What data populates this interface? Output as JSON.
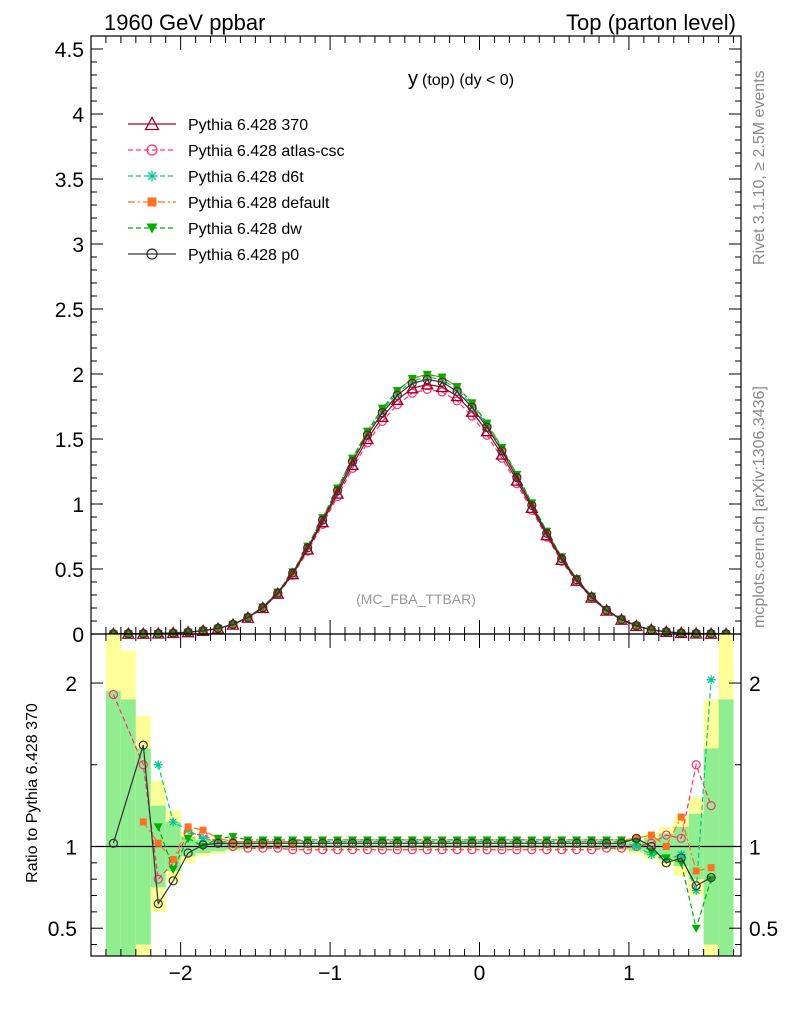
{
  "header": {
    "left": "1960 GeV ppbar",
    "right": "Top (parton level)"
  },
  "side_labels": {
    "rivet": "Rivet 3.1.10, ≥ 2.5M events",
    "mcplots": "mcplots.cern.ch [arXiv:1306.3436]"
  },
  "plot_title": {
    "main": "y",
    "sub": "(top) (dy < 0)"
  },
  "watermark": "(MC_FBA_TTBAR)",
  "ratio_ylabel": "Ratio to Pythia 6.428 370",
  "colors": {
    "band_green": "#90ee90",
    "band_yellow": "#ffff99"
  },
  "chart_data": [
    {
      "type": "line",
      "title": "y (top) (dy < 0)",
      "xlim": [
        -2.6,
        1.75
      ],
      "ylim": [
        0,
        4.6
      ],
      "yticks": [
        "0",
        "0.5",
        "1",
        "1.5",
        "2",
        "2.5",
        "3",
        "3.5",
        "4",
        "4.5"
      ],
      "legend_position": "top-left",
      "x": [
        -2.45,
        -2.35,
        -2.25,
        -2.15,
        -2.05,
        -1.95,
        -1.85,
        -1.75,
        -1.65,
        -1.55,
        -1.45,
        -1.35,
        -1.25,
        -1.15,
        -1.05,
        -0.95,
        -0.85,
        -0.75,
        -0.65,
        -0.55,
        -0.45,
        -0.35,
        -0.25,
        -0.15,
        -0.05,
        0.05,
        0.15,
        0.25,
        0.35,
        0.45,
        0.55,
        0.65,
        0.75,
        0.85,
        0.95,
        1.05,
        1.15,
        1.25,
        1.35,
        1.45,
        1.55,
        1.65
      ],
      "series": [
        {
          "name": "Pythia 6.428 370",
          "color": "#a00020",
          "marker": "triangle-open",
          "dash": "solid",
          "values": [
            0.001,
            0.002,
            0.002,
            0.004,
            0.008,
            0.014,
            0.024,
            0.042,
            0.072,
            0.125,
            0.2,
            0.31,
            0.46,
            0.65,
            0.86,
            1.08,
            1.3,
            1.5,
            1.67,
            1.8,
            1.89,
            1.92,
            1.9,
            1.83,
            1.71,
            1.56,
            1.38,
            1.18,
            0.97,
            0.76,
            0.57,
            0.41,
            0.28,
            0.18,
            0.11,
            0.062,
            0.033,
            0.017,
            0.008,
            0.004,
            0.002,
            0.001
          ]
        },
        {
          "name": "Pythia 6.428 atlas-csc",
          "color": "#ff3070",
          "marker": "circle-open",
          "dash": "dashed",
          "values": [
            0.002,
            0.003,
            0.003,
            0.003,
            0.007,
            0.014,
            0.025,
            0.043,
            0.072,
            0.124,
            0.198,
            0.306,
            0.452,
            0.637,
            0.843,
            1.058,
            1.274,
            1.47,
            1.636,
            1.764,
            1.852,
            1.882,
            1.862,
            1.793,
            1.676,
            1.529,
            1.352,
            1.156,
            0.951,
            0.745,
            0.559,
            0.402,
            0.275,
            0.178,
            0.109,
            0.062,
            0.034,
            0.018,
            0.008,
            0.005,
            0.003,
            0.001
          ]
        },
        {
          "name": "Pythia 6.428 d6t",
          "color": "#00c896",
          "marker": "star",
          "dash": "dashed",
          "values": [
            0.001,
            0.003,
            0.003,
            0.005,
            0.009,
            0.015,
            0.025,
            0.044,
            0.074,
            0.129,
            0.206,
            0.319,
            0.474,
            0.669,
            0.886,
            1.112,
            1.339,
            1.545,
            1.72,
            1.854,
            1.947,
            1.978,
            1.957,
            1.885,
            1.761,
            1.607,
            1.421,
            1.215,
            0.999,
            0.783,
            0.587,
            0.422,
            0.288,
            0.185,
            0.113,
            0.062,
            0.031,
            0.016,
            0.007,
            0.003,
            0.004,
            0.001
          ]
        },
        {
          "name": "Pythia 6.428 default",
          "color": "#ff7020",
          "marker": "square",
          "dash": "dashdot",
          "values": [
            0.002,
            0.002,
            0.002,
            0.004,
            0.009,
            0.015,
            0.025,
            0.044,
            0.074,
            0.129,
            0.206,
            0.319,
            0.474,
            0.676,
            0.894,
            1.123,
            1.352,
            1.56,
            1.737,
            1.872,
            1.966,
            1.997,
            1.976,
            1.903,
            1.778,
            1.622,
            1.435,
            1.227,
            1.009,
            0.79,
            0.593,
            0.426,
            0.291,
            0.187,
            0.114,
            0.065,
            0.035,
            0.017,
            0.008,
            0.003,
            0.002,
            0.001
          ]
        },
        {
          "name": "Pythia 6.428 dw",
          "color": "#00b000",
          "marker": "triangle-down",
          "dash": "dashed",
          "values": [
            0.001,
            0.002,
            0.002,
            0.004,
            0.007,
            0.014,
            0.025,
            0.044,
            0.075,
            0.13,
            0.208,
            0.322,
            0.478,
            0.676,
            0.894,
            1.123,
            1.352,
            1.56,
            1.737,
            1.872,
            1.966,
            1.997,
            1.976,
            1.903,
            1.778,
            1.622,
            1.435,
            1.227,
            1.009,
            0.79,
            0.593,
            0.426,
            0.291,
            0.187,
            0.114,
            0.064,
            0.033,
            0.016,
            0.007,
            0.002,
            0.003,
            0.001
          ]
        },
        {
          "name": "Pythia 6.428 p0",
          "color": "#333333",
          "marker": "circle-open",
          "dash": "solid",
          "values": [
            0.001,
            0.003,
            0.003,
            0.003,
            0.007,
            0.014,
            0.025,
            0.044,
            0.074,
            0.128,
            0.204,
            0.316,
            0.469,
            0.663,
            0.877,
            1.102,
            1.326,
            1.53,
            1.703,
            1.836,
            1.928,
            1.958,
            1.938,
            1.867,
            1.744,
            1.591,
            1.408,
            1.204,
            0.989,
            0.775,
            0.581,
            0.418,
            0.286,
            0.184,
            0.112,
            0.065,
            0.031,
            0.016,
            0.007,
            0.003,
            0.002,
            0.001
          ]
        }
      ]
    },
    {
      "type": "line",
      "ylabel": "Ratio to Pythia 6.428 370",
      "xlim": [
        -2.6,
        1.75
      ],
      "ylim": [
        0.33,
        2.3
      ],
      "yticks": [
        "0.5",
        "1",
        "2"
      ],
      "xticks": [
        "−2",
        "−1",
        "0",
        "1"
      ],
      "x": [
        -2.45,
        -2.35,
        -2.25,
        -2.15,
        -2.05,
        -1.95,
        -1.85,
        -1.75,
        -1.65,
        -1.55,
        -1.45,
        -1.35,
        -1.25,
        -1.15,
        -1.05,
        -0.95,
        -0.85,
        -0.75,
        -0.65,
        -0.55,
        -0.45,
        -0.35,
        -0.25,
        -0.15,
        -0.05,
        0.05,
        0.15,
        0.25,
        0.35,
        0.45,
        0.55,
        0.65,
        0.75,
        0.85,
        0.95,
        1.05,
        1.15,
        1.25,
        1.35,
        1.45,
        1.55,
        1.65
      ],
      "reference_band": {
        "green_halfwidth": [
          0.95,
          0.9,
          0.6,
          0.25,
          0.15,
          0.06,
          0.04,
          0.03,
          0.02,
          0.015,
          0.012,
          0.01,
          0.01,
          0.01,
          0.01,
          0.01,
          0.01,
          0.01,
          0.01,
          0.01,
          0.01,
          0.01,
          0.01,
          0.01,
          0.01,
          0.01,
          0.01,
          0.01,
          0.01,
          0.01,
          0.01,
          0.01,
          0.01,
          0.015,
          0.02,
          0.03,
          0.05,
          0.08,
          0.12,
          0.2,
          0.6,
          0.9
        ],
        "yellow_halfwidth": [
          1.3,
          1.2,
          0.8,
          0.4,
          0.22,
          0.1,
          0.06,
          0.045,
          0.03,
          0.02,
          0.018,
          0.015,
          0.015,
          0.015,
          0.015,
          0.015,
          0.015,
          0.015,
          0.015,
          0.015,
          0.015,
          0.015,
          0.015,
          0.015,
          0.015,
          0.015,
          0.015,
          0.015,
          0.015,
          0.015,
          0.015,
          0.015,
          0.015,
          0.02,
          0.03,
          0.045,
          0.08,
          0.12,
          0.18,
          0.3,
          0.9,
          1.3
        ]
      },
      "series": [
        {
          "name": "Pythia 6.428 atlas-csc",
          "values": [
            1.93,
            null,
            1.5,
            0.8,
            0.9,
            1.08,
            1.07,
            1.03,
            1.0,
            0.99,
            0.99,
            0.99,
            0.98,
            0.98,
            0.98,
            0.98,
            0.98,
            0.98,
            0.98,
            0.98,
            0.98,
            0.98,
            0.98,
            0.98,
            0.98,
            0.98,
            0.98,
            0.98,
            0.98,
            0.98,
            0.98,
            0.98,
            0.98,
            0.99,
            0.99,
            1.0,
            1.02,
            1.07,
            1.05,
            1.5,
            1.25,
            null
          ]
        },
        {
          "name": "Pythia 6.428 d6t",
          "values": [
            null,
            null,
            null,
            1.5,
            1.15,
            1.1,
            1.05,
            1.03,
            1.03,
            1.03,
            1.03,
            1.03,
            1.03,
            1.03,
            1.03,
            1.03,
            1.03,
            1.03,
            1.03,
            1.03,
            1.03,
            1.03,
            1.03,
            1.03,
            1.03,
            1.03,
            1.03,
            1.03,
            1.03,
            1.03,
            1.03,
            1.03,
            1.03,
            1.03,
            1.03,
            1.0,
            0.95,
            0.92,
            0.95,
            0.73,
            2.02,
            null
          ]
        },
        {
          "name": "Pythia 6.428 default",
          "values": [
            null,
            null,
            1.15,
            1.02,
            0.92,
            1.12,
            1.1,
            1.05,
            1.03,
            1.03,
            1.03,
            1.03,
            1.03,
            1.04,
            1.04,
            1.04,
            1.04,
            1.04,
            1.04,
            1.04,
            1.04,
            1.04,
            1.04,
            1.04,
            1.04,
            1.04,
            1.04,
            1.04,
            1.04,
            1.04,
            1.04,
            1.04,
            1.04,
            1.04,
            1.04,
            1.05,
            1.07,
            1.0,
            1.18,
            0.85,
            0.87,
            null
          ]
        },
        {
          "name": "Pythia 6.428 dw",
          "values": [
            null,
            null,
            null,
            1.12,
            0.86,
            1.05,
            1.0,
            1.05,
            1.06,
            1.04,
            1.04,
            1.04,
            1.04,
            1.04,
            1.04,
            1.04,
            1.04,
            1.04,
            1.04,
            1.04,
            1.04,
            1.04,
            1.04,
            1.04,
            1.04,
            1.04,
            1.04,
            1.04,
            1.04,
            1.04,
            1.04,
            1.04,
            1.04,
            1.04,
            1.04,
            1.03,
            0.97,
            0.93,
            0.9,
            0.5,
            0.8,
            null
          ]
        },
        {
          "name": "Pythia 6.428 p0",
          "values": [
            1.02,
            null,
            1.62,
            0.65,
            0.79,
            0.96,
            1.01,
            1.02,
            1.02,
            1.02,
            1.02,
            1.02,
            1.02,
            1.02,
            1.02,
            1.02,
            1.02,
            1.02,
            1.02,
            1.02,
            1.02,
            1.02,
            1.02,
            1.02,
            1.02,
            1.02,
            1.02,
            1.02,
            1.02,
            1.02,
            1.02,
            1.02,
            1.02,
            1.02,
            1.02,
            1.05,
            1.0,
            0.9,
            0.93,
            0.76,
            0.81,
            null
          ]
        }
      ]
    }
  ]
}
